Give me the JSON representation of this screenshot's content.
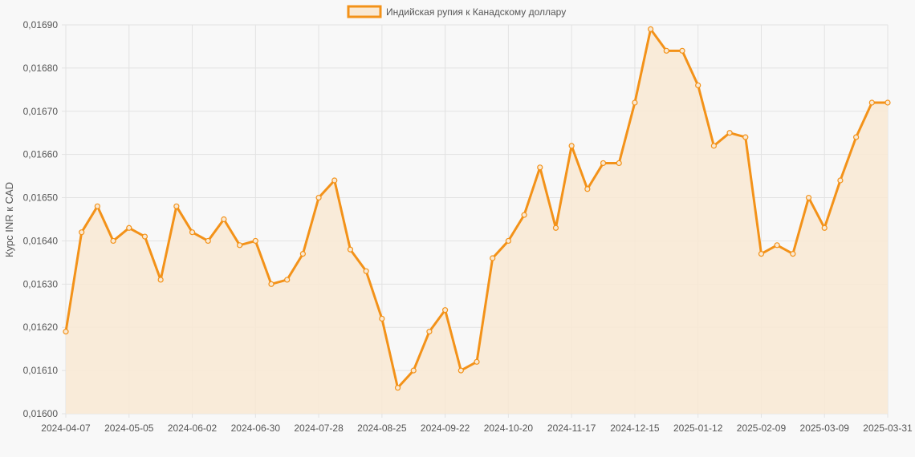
{
  "chart_data": {
    "type": "line",
    "title": "",
    "xlabel": "",
    "ylabel": "Курс INR к CAD",
    "legend_position": "top",
    "grid": true,
    "ylim": [
      0.016,
      0.0169
    ],
    "y_ticks": [
      "0,01690",
      "0,01680",
      "0,01670",
      "0,01660",
      "0,01650",
      "0,01640",
      "0,01630",
      "0,01620",
      "0,01610",
      "0,01600"
    ],
    "x_ticks": [
      "2024-04-07",
      "2024-05-05",
      "2024-06-02",
      "2024-06-30",
      "2024-07-28",
      "2024-08-25",
      "2024-09-22",
      "2024-10-20",
      "2024-11-17",
      "2024-12-15",
      "2025-01-12",
      "2025-02-09",
      "2025-03-09",
      "2025-03-31"
    ],
    "series": [
      {
        "name": "Индийская рупия к Канадскому доллару",
        "color": "#f39219",
        "fill": "#f9e9d4",
        "values": [
          0.01619,
          0.01642,
          0.01648,
          0.0164,
          0.01643,
          0.01641,
          0.01631,
          0.01648,
          0.01642,
          0.0164,
          0.01645,
          0.01639,
          0.0164,
          0.0163,
          0.01631,
          0.01637,
          0.0165,
          0.01654,
          0.01638,
          0.01633,
          0.01622,
          0.01606,
          0.0161,
          0.01619,
          0.01624,
          0.0161,
          0.01612,
          0.01636,
          0.0164,
          0.01646,
          0.01657,
          0.01643,
          0.01662,
          0.01652,
          0.01658,
          0.01658,
          0.01672,
          0.01689,
          0.01684,
          0.01684,
          0.01676,
          0.01662,
          0.01665,
          0.01664,
          0.01637,
          0.01639,
          0.01637,
          0.0165,
          0.01643,
          0.01654,
          0.01664,
          0.01672,
          0.01672
        ]
      }
    ]
  }
}
